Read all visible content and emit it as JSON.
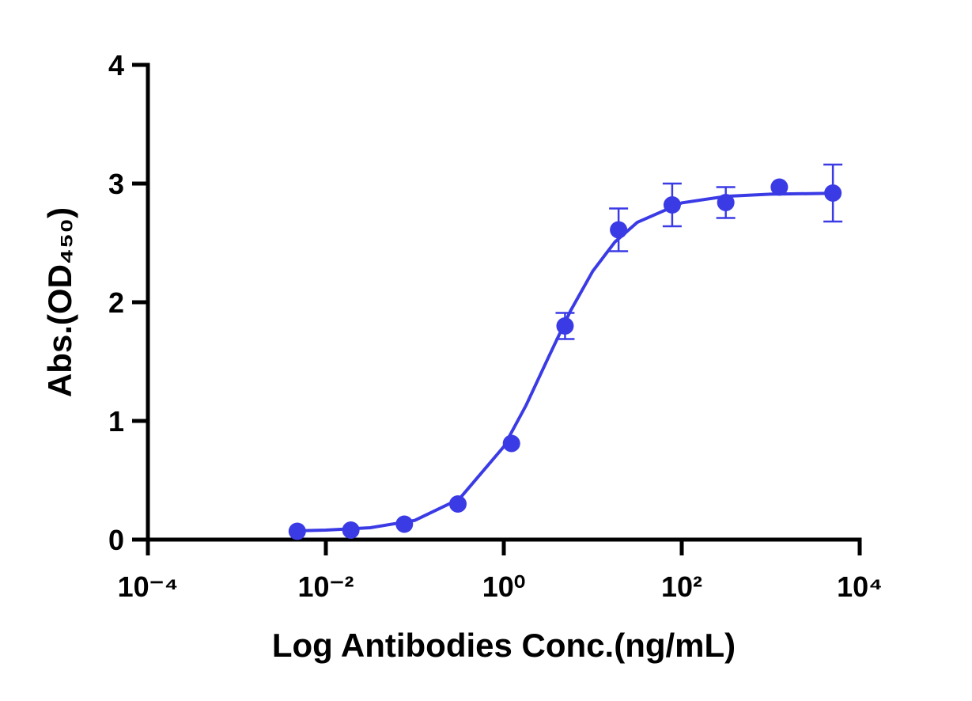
{
  "chart_data": {
    "type": "scatter",
    "x_label": "Log Antibodies Conc.(ng/mL)",
    "y_label": "Abs.(OD₄₅₀)",
    "x_scale": "log",
    "xlim": [
      0.0001,
      10000
    ],
    "xticks": [
      {
        "value": 0.0001,
        "label": "10⁻⁴"
      },
      {
        "value": 0.01,
        "label": "10⁻²"
      },
      {
        "value": 1,
        "label": "10⁰"
      },
      {
        "value": 100,
        "label": "10²"
      },
      {
        "value": 10000,
        "label": "10⁴"
      }
    ],
    "ylim": [
      0,
      4
    ],
    "yticks": [
      0,
      1,
      2,
      3,
      4
    ],
    "color": "#3b3be6",
    "x": [
      0.00477,
      0.0191,
      0.0763,
      0.305,
      1.22,
      4.88,
      19.5,
      78.1,
      312.5,
      1250,
      5000
    ],
    "values": [
      0.07,
      0.08,
      0.13,
      0.3,
      0.81,
      1.8,
      2.61,
      2.82,
      2.84,
      2.97,
      2.92
    ],
    "errors": [
      null,
      null,
      null,
      null,
      null,
      0.11,
      0.18,
      0.18,
      0.13,
      null,
      0.24
    ],
    "fit": {
      "x": [
        0.00501,
        0.01,
        0.0316,
        0.1,
        0.316,
        1,
        1.778,
        3.162,
        5.623,
        10,
        17.78,
        31.62,
        100,
        316,
        1000,
        5012
      ],
      "values": [
        0.075,
        0.08,
        0.1,
        0.162,
        0.342,
        0.783,
        1.131,
        1.532,
        1.928,
        2.262,
        2.509,
        2.673,
        2.837,
        2.893,
        2.911,
        2.918
      ]
    }
  }
}
